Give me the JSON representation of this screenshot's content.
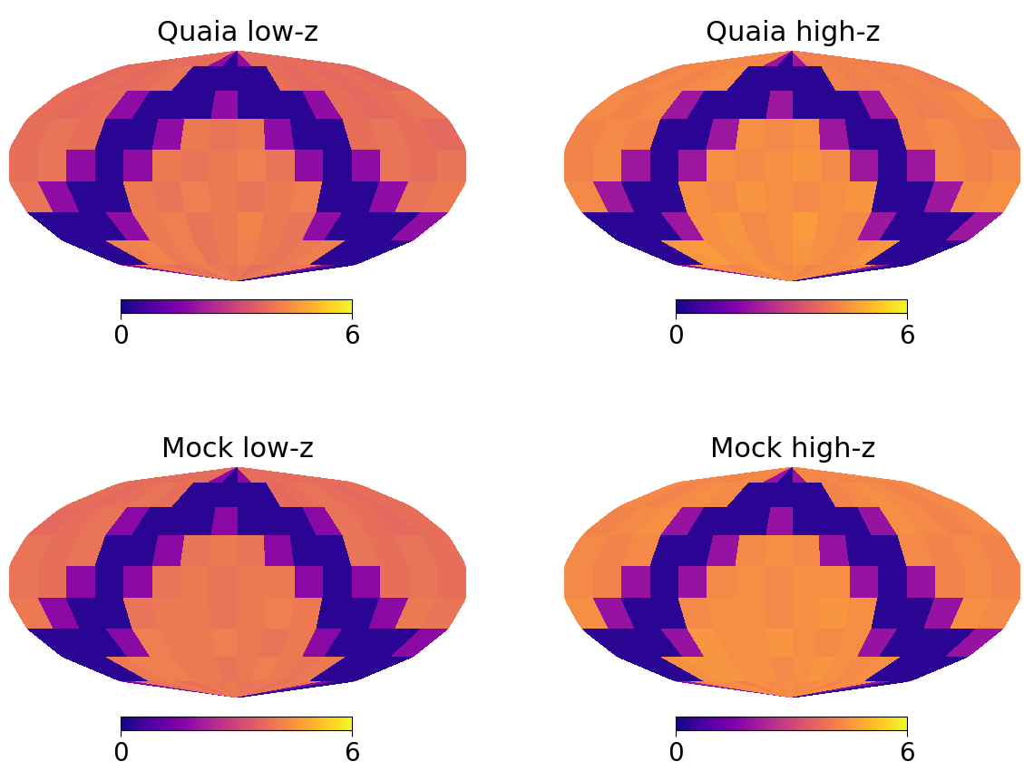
{
  "chart_data": [
    {
      "type": "heatmap",
      "title": "Quaia low-z",
      "color": "plasma",
      "tick_labels": false,
      "grid": false,
      "lon_edges": [
        -180,
        -157.5,
        -135,
        -112.5,
        -90,
        -67.5,
        -45,
        -22.5,
        0,
        22.5,
        45,
        67.5,
        90,
        112.5,
        135,
        157.5,
        180
      ],
      "lat_edges": [
        -90,
        -70,
        -50,
        -30,
        -10,
        10,
        30,
        50,
        70,
        90
      ],
      "cells": [
        [
          1.8,
          3.9,
          4.0,
          3.8,
          3.9,
          4.1,
          4.0,
          3.9,
          4.0,
          3.8,
          3.9,
          4.0,
          3.9,
          4.0,
          1.8,
          0.3
        ],
        [
          0.3,
          0.3,
          4.1,
          4.2,
          4.0,
          4.1,
          3.9,
          4.0,
          4.1,
          4.0,
          3.9,
          4.0,
          4.1,
          0.3,
          0.3,
          0.3
        ],
        [
          0.3,
          0.3,
          0.3,
          1.8,
          4.0,
          4.1,
          3.9,
          4.0,
          4.2,
          4.0,
          3.9,
          1.8,
          0.3,
          0.3,
          0.3,
          1.8
        ],
        [
          3.9,
          1.8,
          0.3,
          0.3,
          4.0,
          3.9,
          4.1,
          4.0,
          3.9,
          4.0,
          4.1,
          0.3,
          0.3,
          1.8,
          3.9,
          4.0
        ],
        [
          3.8,
          3.9,
          1.8,
          0.3,
          1.8,
          4.0,
          3.9,
          4.0,
          4.1,
          3.9,
          1.8,
          0.3,
          1.8,
          3.9,
          3.8,
          3.9
        ],
        [
          3.8,
          3.9,
          3.8,
          0.3,
          0.3,
          1.8,
          4.0,
          3.9,
          4.0,
          1.8,
          0.3,
          0.3,
          3.8,
          3.9,
          3.8,
          3.7
        ],
        [
          3.8,
          3.7,
          3.8,
          1.8,
          0.3,
          0.3,
          0.3,
          1.8,
          0.3,
          0.3,
          0.3,
          1.8,
          3.8,
          3.7,
          3.8,
          3.9
        ],
        [
          3.7,
          3.8,
          3.7,
          3.8,
          3.9,
          0.3,
          0.3,
          0.3,
          0.3,
          0.3,
          3.8,
          3.7,
          3.8,
          3.7,
          3.8,
          3.7
        ],
        [
          3.7,
          3.8,
          3.7,
          3.8,
          3.7,
          3.8,
          1.8,
          0.3,
          1.8,
          3.7,
          3.8,
          3.7,
          3.8,
          3.7,
          3.8,
          3.7
        ]
      ],
      "colorbar_range": [
        0,
        6
      ],
      "colorbar_ticks": [
        0,
        6
      ]
    },
    {
      "type": "heatmap",
      "title": "Quaia high-z",
      "color": "plasma",
      "tick_labels": false,
      "grid": false,
      "lon_edges": [
        -180,
        -157.5,
        -135,
        -112.5,
        -90,
        -67.5,
        -45,
        -22.5,
        0,
        22.5,
        45,
        67.5,
        90,
        112.5,
        135,
        157.5,
        180
      ],
      "lat_edges": [
        -90,
        -70,
        -50,
        -30,
        -10,
        10,
        30,
        50,
        70,
        90
      ],
      "cells": [
        [
          2.0,
          4.3,
          4.4,
          4.2,
          4.3,
          4.5,
          4.4,
          4.3,
          4.4,
          4.2,
          4.3,
          4.4,
          4.3,
          4.4,
          2.0,
          0.3
        ],
        [
          0.3,
          0.3,
          4.5,
          4.6,
          4.4,
          4.5,
          4.3,
          4.4,
          4.5,
          4.4,
          4.3,
          4.4,
          4.5,
          0.3,
          0.3,
          0.3
        ],
        [
          0.3,
          0.3,
          0.3,
          2.0,
          4.4,
          4.5,
          4.3,
          4.4,
          4.6,
          4.4,
          4.3,
          2.0,
          0.3,
          0.3,
          0.3,
          2.0
        ],
        [
          4.3,
          2.0,
          0.3,
          0.3,
          4.4,
          4.3,
          4.5,
          4.4,
          4.3,
          4.4,
          4.5,
          0.3,
          0.3,
          2.0,
          4.3,
          4.4
        ],
        [
          4.2,
          4.3,
          2.0,
          0.3,
          2.0,
          4.4,
          4.3,
          4.4,
          4.5,
          4.3,
          2.0,
          0.3,
          2.0,
          4.3,
          4.2,
          4.3
        ],
        [
          4.2,
          4.3,
          4.2,
          0.3,
          0.3,
          2.0,
          4.4,
          4.3,
          4.4,
          2.0,
          0.3,
          0.3,
          4.2,
          4.3,
          4.2,
          4.1
        ],
        [
          4.3,
          4.2,
          4.3,
          2.0,
          0.3,
          0.3,
          0.3,
          2.0,
          0.3,
          0.3,
          0.3,
          2.0,
          4.2,
          4.1,
          4.2,
          4.3
        ],
        [
          4.2,
          4.3,
          4.2,
          4.3,
          4.4,
          0.3,
          0.3,
          0.3,
          0.3,
          0.3,
          4.2,
          4.1,
          4.2,
          4.1,
          4.2,
          4.1
        ],
        [
          4.2,
          4.3,
          4.2,
          4.3,
          4.2,
          4.3,
          2.0,
          0.3,
          2.0,
          4.1,
          4.2,
          4.1,
          4.2,
          4.1,
          4.2,
          4.1
        ]
      ],
      "colorbar_range": [
        0,
        6
      ],
      "colorbar_ticks": [
        0,
        6
      ]
    },
    {
      "type": "heatmap",
      "title": "Mock low-z",
      "color": "plasma",
      "tick_labels": false,
      "grid": false,
      "lon_edges": [
        -180,
        -157.5,
        -135,
        -112.5,
        -90,
        -67.5,
        -45,
        -22.5,
        0,
        22.5,
        45,
        67.5,
        90,
        112.5,
        135,
        157.5,
        180
      ],
      "lat_edges": [
        -90,
        -70,
        -50,
        -30,
        -10,
        10,
        30,
        50,
        70,
        90
      ],
      "cells": [
        [
          1.7,
          3.8,
          3.9,
          4.0,
          3.8,
          4.0,
          3.9,
          4.0,
          3.9,
          3.9,
          4.0,
          3.8,
          4.0,
          3.9,
          1.7,
          0.3
        ],
        [
          0.3,
          0.3,
          4.0,
          4.1,
          4.1,
          4.0,
          4.0,
          3.9,
          4.0,
          4.1,
          4.0,
          3.9,
          4.0,
          0.3,
          0.3,
          0.3
        ],
        [
          0.3,
          0.3,
          0.3,
          1.7,
          4.1,
          4.0,
          4.0,
          4.1,
          4.0,
          3.9,
          4.0,
          1.7,
          0.3,
          0.3,
          0.3,
          1.7
        ],
        [
          4.0,
          1.7,
          0.3,
          0.3,
          3.9,
          4.0,
          4.0,
          3.9,
          4.0,
          4.1,
          4.0,
          0.3,
          0.3,
          1.7,
          4.0,
          3.9
        ],
        [
          3.9,
          3.8,
          1.7,
          0.3,
          1.7,
          3.9,
          4.0,
          3.9,
          4.0,
          4.0,
          1.7,
          0.3,
          1.7,
          3.8,
          3.9,
          3.8
        ],
        [
          3.9,
          3.8,
          3.9,
          0.3,
          0.3,
          1.7,
          3.9,
          4.0,
          3.9,
          1.7,
          0.3,
          0.3,
          3.9,
          3.8,
          3.9,
          3.8
        ],
        [
          3.7,
          3.8,
          3.9,
          1.7,
          0.3,
          0.3,
          0.3,
          1.7,
          0.3,
          0.3,
          0.3,
          1.7,
          3.9,
          3.8,
          3.7,
          3.8
        ],
        [
          3.8,
          3.7,
          3.8,
          3.9,
          3.8,
          0.3,
          0.3,
          0.3,
          0.3,
          0.3,
          3.7,
          3.8,
          3.9,
          3.8,
          3.7,
          3.8
        ],
        [
          3.8,
          3.7,
          3.8,
          3.7,
          3.8,
          3.7,
          1.7,
          0.3,
          1.7,
          3.8,
          3.7,
          3.8,
          3.7,
          3.8,
          3.7,
          3.8
        ]
      ],
      "colorbar_range": [
        0,
        6
      ],
      "colorbar_ticks": [
        0,
        6
      ]
    },
    {
      "type": "heatmap",
      "title": "Mock high-z",
      "color": "plasma",
      "tick_labels": false,
      "grid": false,
      "lon_edges": [
        -180,
        -157.5,
        -135,
        -112.5,
        -90,
        -67.5,
        -45,
        -22.5,
        0,
        22.5,
        45,
        67.5,
        90,
        112.5,
        135,
        157.5,
        180
      ],
      "lat_edges": [
        -90,
        -70,
        -50,
        -30,
        -10,
        10,
        30,
        50,
        70,
        90
      ],
      "cells": [
        [
          1.9,
          4.2,
          4.3,
          4.4,
          4.2,
          4.4,
          4.3,
          4.4,
          4.3,
          4.3,
          4.4,
          4.2,
          4.4,
          4.3,
          1.9,
          0.3
        ],
        [
          0.3,
          0.3,
          4.4,
          4.5,
          4.5,
          4.4,
          4.4,
          4.3,
          4.4,
          4.5,
          4.4,
          4.3,
          4.4,
          0.3,
          0.3,
          0.3
        ],
        [
          0.3,
          0.3,
          0.3,
          1.9,
          4.5,
          4.4,
          4.4,
          4.5,
          4.4,
          4.3,
          4.4,
          1.9,
          0.3,
          0.3,
          0.3,
          1.9
        ],
        [
          4.4,
          1.9,
          0.3,
          0.3,
          4.3,
          4.4,
          4.4,
          4.3,
          4.4,
          4.5,
          4.4,
          0.3,
          0.3,
          1.9,
          4.4,
          4.3
        ],
        [
          4.3,
          4.2,
          1.9,
          0.3,
          1.9,
          4.3,
          4.4,
          4.3,
          4.4,
          4.4,
          1.9,
          0.3,
          1.9,
          4.2,
          4.3,
          4.2
        ],
        [
          4.3,
          4.2,
          4.3,
          0.3,
          0.3,
          1.9,
          4.3,
          4.4,
          4.3,
          1.9,
          0.3,
          0.3,
          4.3,
          4.2,
          4.3,
          4.2
        ],
        [
          4.2,
          4.3,
          4.4,
          1.9,
          0.3,
          0.3,
          0.3,
          1.9,
          0.3,
          0.3,
          0.3,
          1.9,
          4.4,
          4.3,
          4.2,
          4.3
        ],
        [
          4.3,
          4.2,
          4.3,
          4.4,
          4.3,
          0.3,
          0.3,
          0.3,
          0.3,
          0.3,
          4.2,
          4.3,
          4.4,
          4.3,
          4.2,
          4.3
        ],
        [
          4.3,
          4.2,
          4.3,
          4.2,
          4.3,
          4.2,
          1.9,
          0.3,
          1.9,
          4.3,
          4.2,
          4.3,
          4.2,
          4.3,
          4.2,
          4.3
        ]
      ],
      "colorbar_range": [
        0,
        6
      ],
      "colorbar_ticks": [
        0,
        6
      ]
    }
  ]
}
